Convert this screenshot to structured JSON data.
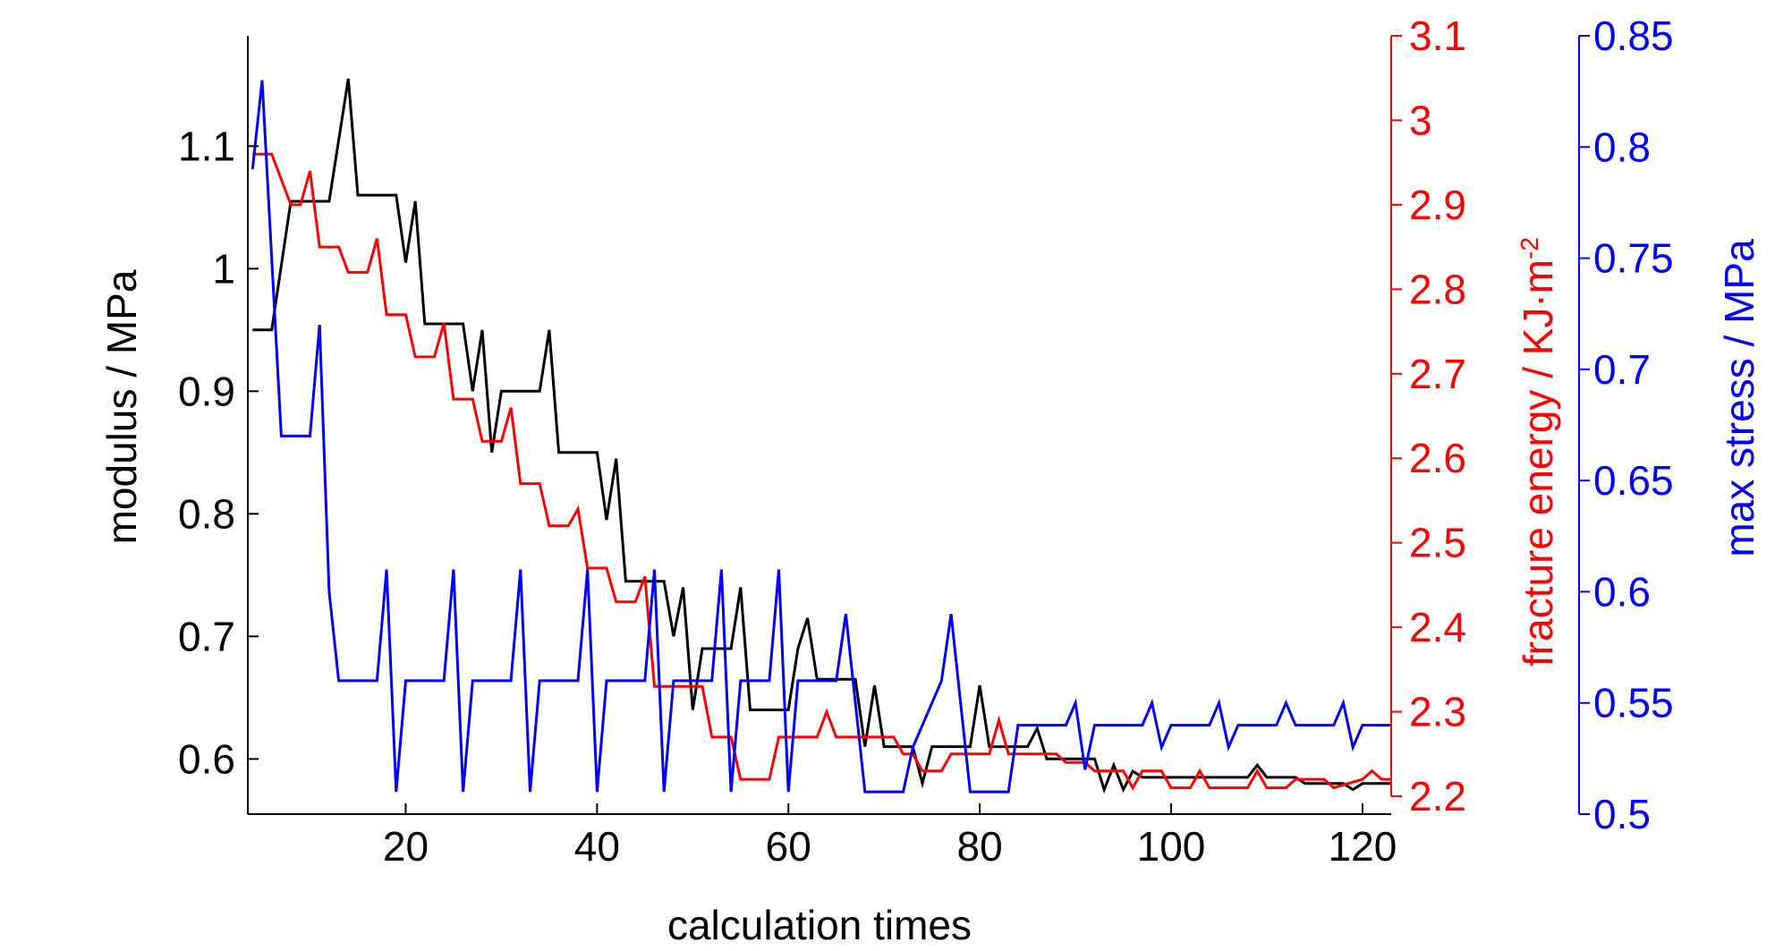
{
  "chart_data": {
    "type": "line",
    "title": "",
    "xlabel": "calculation times",
    "xlim": [
      3.5,
      123
    ],
    "x_ticks": [
      20,
      40,
      60,
      80,
      100,
      120
    ],
    "axes": {
      "left": {
        "label": "modulus / MPa",
        "ylim": [
          0.555,
          1.19
        ],
        "ticks": [
          0.6,
          0.7,
          0.8,
          0.9,
          1,
          1.1
        ],
        "tick_labels": [
          "0.6",
          "0.7",
          "0.8",
          "0.9",
          "1",
          "1.1"
        ],
        "color": "#000000"
      },
      "right1": {
        "label_main": "fracture energy / KJ·m",
        "label_superscript": "-2",
        "ylim": [
          2.2,
          3.1
        ],
        "ticks": [
          2.2,
          2.3,
          2.4,
          2.5,
          2.6,
          2.7,
          2.8,
          2.9,
          3,
          3.1
        ],
        "tick_labels": [
          "2.2",
          "2.3",
          "2.4",
          "2.5",
          "2.6",
          "2.7",
          "2.8",
          "2.9",
          "3",
          "3.1"
        ],
        "color": "#ff0000"
      },
      "right2": {
        "label": "max stress / MPa",
        "ylim": [
          0.5,
          0.85
        ],
        "ticks": [
          0.5,
          0.55,
          0.6,
          0.65,
          0.7,
          0.75,
          0.8,
          0.85
        ],
        "tick_labels": [
          "0.5",
          "0.55",
          "0.6",
          "0.65",
          "0.7",
          "0.75",
          "0.8",
          "0.85"
        ],
        "color": "#0000ff"
      }
    },
    "series": [
      {
        "axis": "left",
        "color": "#000000",
        "points": [
          [
            4,
            0.95
          ],
          [
            6,
            0.95
          ],
          [
            8,
            1.055
          ],
          [
            12,
            1.055
          ],
          [
            14,
            1.155
          ],
          [
            15,
            1.06
          ],
          [
            19,
            1.06
          ],
          [
            20,
            1.005
          ],
          [
            21,
            1.055
          ],
          [
            22,
            0.955
          ],
          [
            26,
            0.955
          ],
          [
            27,
            0.9
          ],
          [
            28,
            0.95
          ],
          [
            29,
            0.85
          ],
          [
            30,
            0.9
          ],
          [
            34,
            0.9
          ],
          [
            35,
            0.95
          ],
          [
            36,
            0.85
          ],
          [
            40,
            0.85
          ],
          [
            41,
            0.795
          ],
          [
            42,
            0.845
          ],
          [
            43,
            0.745
          ],
          [
            47,
            0.745
          ],
          [
            48,
            0.7
          ],
          [
            49,
            0.74
          ],
          [
            50,
            0.64
          ],
          [
            51,
            0.69
          ],
          [
            54,
            0.69
          ],
          [
            55,
            0.74
          ],
          [
            56,
            0.64
          ],
          [
            59,
            0.64
          ],
          [
            60,
            0.64
          ],
          [
            61,
            0.69
          ],
          [
            62,
            0.715
          ],
          [
            63,
            0.665
          ],
          [
            67,
            0.665
          ],
          [
            68,
            0.61
          ],
          [
            69,
            0.66
          ],
          [
            70,
            0.61
          ],
          [
            73,
            0.61
          ],
          [
            74,
            0.58
          ],
          [
            75,
            0.61
          ],
          [
            79,
            0.61
          ],
          [
            80,
            0.66
          ],
          [
            81,
            0.61
          ],
          [
            85,
            0.61
          ],
          [
            86,
            0.625
          ],
          [
            87,
            0.6
          ],
          [
            92,
            0.6
          ],
          [
            93,
            0.575
          ],
          [
            94,
            0.595
          ],
          [
            95,
            0.575
          ],
          [
            96,
            0.59
          ],
          [
            97,
            0.585
          ],
          [
            108,
            0.585
          ],
          [
            109,
            0.595
          ],
          [
            110,
            0.585
          ],
          [
            113,
            0.585
          ],
          [
            114,
            0.58
          ],
          [
            118,
            0.58
          ],
          [
            119,
            0.575
          ],
          [
            120,
            0.58
          ],
          [
            122,
            0.58
          ],
          [
            123,
            0.58
          ]
        ]
      },
      {
        "axis": "right1",
        "color": "#ff0000",
        "points": [
          [
            4,
            2.96
          ],
          [
            6,
            2.96
          ],
          [
            8,
            2.9
          ],
          [
            9,
            2.9
          ],
          [
            10,
            2.94
          ],
          [
            11,
            2.85
          ],
          [
            13,
            2.85
          ],
          [
            14,
            2.82
          ],
          [
            16,
            2.82
          ],
          [
            17,
            2.86
          ],
          [
            18,
            2.77
          ],
          [
            20,
            2.77
          ],
          [
            21,
            2.72
          ],
          [
            23,
            2.72
          ],
          [
            24,
            2.76
          ],
          [
            25,
            2.67
          ],
          [
            27,
            2.67
          ],
          [
            28,
            2.62
          ],
          [
            30,
            2.62
          ],
          [
            31,
            2.66
          ],
          [
            32,
            2.57
          ],
          [
            34,
            2.57
          ],
          [
            35,
            2.52
          ],
          [
            37,
            2.52
          ],
          [
            38,
            2.54
          ],
          [
            39,
            2.47
          ],
          [
            41,
            2.47
          ],
          [
            42,
            2.43
          ],
          [
            44,
            2.43
          ],
          [
            45,
            2.46
          ],
          [
            46,
            2.33
          ],
          [
            51,
            2.33
          ],
          [
            52,
            2.27
          ],
          [
            54,
            2.27
          ],
          [
            55,
            2.22
          ],
          [
            58,
            2.22
          ],
          [
            59,
            2.27
          ],
          [
            63,
            2.27
          ],
          [
            64,
            2.3
          ],
          [
            65,
            2.27
          ],
          [
            71,
            2.27
          ],
          [
            72,
            2.25
          ],
          [
            73,
            2.25
          ],
          [
            74,
            2.23
          ],
          [
            76,
            2.23
          ],
          [
            77,
            2.25
          ],
          [
            81,
            2.25
          ],
          [
            82,
            2.29
          ],
          [
            83,
            2.25
          ],
          [
            88,
            2.25
          ],
          [
            89,
            2.24
          ],
          [
            91,
            2.24
          ],
          [
            92,
            2.23
          ],
          [
            95,
            2.23
          ],
          [
            96,
            2.21
          ],
          [
            97,
            2.23
          ],
          [
            99,
            2.23
          ],
          [
            100,
            2.21
          ],
          [
            102,
            2.21
          ],
          [
            103,
            2.23
          ],
          [
            104,
            2.21
          ],
          [
            108,
            2.21
          ],
          [
            109,
            2.23
          ],
          [
            110,
            2.21
          ],
          [
            112,
            2.21
          ],
          [
            113,
            2.22
          ],
          [
            116,
            2.22
          ],
          [
            117,
            2.21
          ],
          [
            120,
            2.22
          ],
          [
            121,
            2.23
          ],
          [
            122,
            2.22
          ],
          [
            123,
            2.22
          ]
        ]
      },
      {
        "axis": "right2",
        "color": "#0000ff",
        "points": [
          [
            4,
            0.79
          ],
          [
            5,
            0.83
          ],
          [
            6,
            0.75
          ],
          [
            7,
            0.67
          ],
          [
            10,
            0.67
          ],
          [
            11,
            0.72
          ],
          [
            12,
            0.6
          ],
          [
            13,
            0.56
          ],
          [
            17,
            0.56
          ],
          [
            18,
            0.61
          ],
          [
            19,
            0.51
          ],
          [
            20,
            0.56
          ],
          [
            24,
            0.56
          ],
          [
            25,
            0.61
          ],
          [
            26,
            0.51
          ],
          [
            27,
            0.56
          ],
          [
            31,
            0.56
          ],
          [
            32,
            0.61
          ],
          [
            33,
            0.51
          ],
          [
            34,
            0.56
          ],
          [
            38,
            0.56
          ],
          [
            39,
            0.61
          ],
          [
            40,
            0.51
          ],
          [
            41,
            0.56
          ],
          [
            45,
            0.56
          ],
          [
            46,
            0.61
          ],
          [
            47,
            0.51
          ],
          [
            48,
            0.56
          ],
          [
            52,
            0.56
          ],
          [
            53,
            0.61
          ],
          [
            54,
            0.51
          ],
          [
            55,
            0.56
          ],
          [
            58,
            0.56
          ],
          [
            59,
            0.61
          ],
          [
            60,
            0.51
          ],
          [
            61,
            0.56
          ],
          [
            65,
            0.56
          ],
          [
            66,
            0.59
          ],
          [
            67,
            0.55
          ],
          [
            68,
            0.51
          ],
          [
            72,
            0.51
          ],
          [
            73,
            0.53
          ],
          [
            76,
            0.56
          ],
          [
            77,
            0.59
          ],
          [
            78,
            0.55
          ],
          [
            79,
            0.51
          ],
          [
            83,
            0.51
          ],
          [
            84,
            0.54
          ],
          [
            89,
            0.54
          ],
          [
            90,
            0.55
          ],
          [
            91,
            0.52
          ],
          [
            92,
            0.54
          ],
          [
            97,
            0.54
          ],
          [
            98,
            0.55
          ],
          [
            99,
            0.53
          ],
          [
            100,
            0.54
          ],
          [
            104,
            0.54
          ],
          [
            105,
            0.55
          ],
          [
            106,
            0.53
          ],
          [
            107,
            0.54
          ],
          [
            111,
            0.54
          ],
          [
            112,
            0.55
          ],
          [
            113,
            0.54
          ],
          [
            117,
            0.54
          ],
          [
            118,
            0.55
          ],
          [
            119,
            0.53
          ],
          [
            120,
            0.54
          ],
          [
            123,
            0.54
          ]
        ]
      }
    ]
  }
}
